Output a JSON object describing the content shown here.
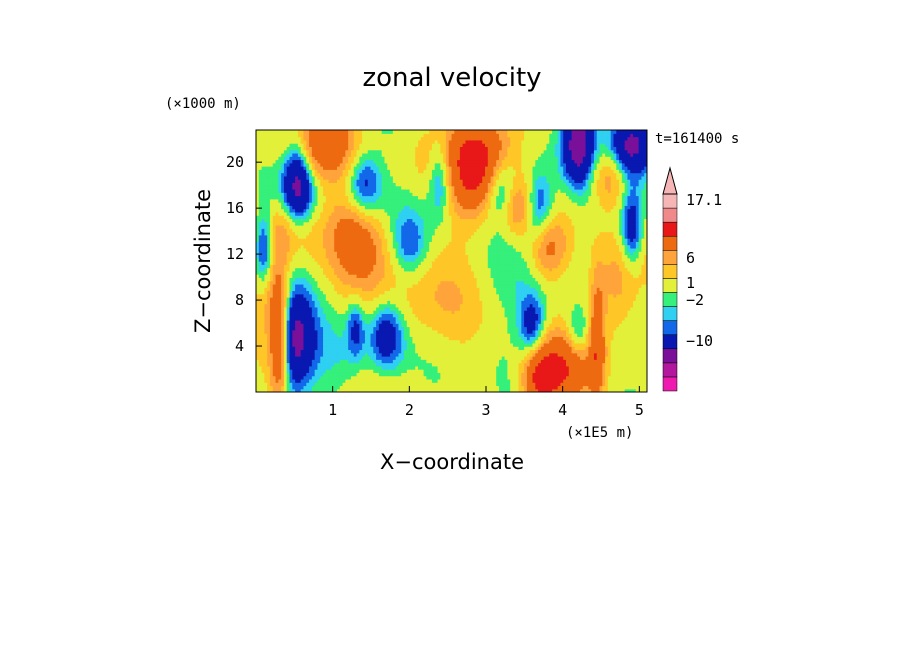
{
  "chart_data": {
    "type": "heatmap",
    "title": "zonal velocity",
    "xlabel": "X−coordinate",
    "ylabel": "Z−coordinate",
    "x_unit": "(×1E5 m)",
    "y_unit": "(×1000 m)",
    "time_label": "t=161400 s",
    "xlim": [
      0,
      5.1
    ],
    "ylim": [
      0,
      22.8
    ],
    "x_ticks": [
      1,
      2,
      3,
      4,
      5
    ],
    "y_ticks": [
      4,
      8,
      12,
      16,
      20
    ],
    "colorbar": {
      "labels": [
        {
          "text": "17.1",
          "value": 17.1
        },
        {
          "text": "6",
          "value": 6
        },
        {
          "text": "1",
          "value": 1
        },
        {
          "text": "−2",
          "value": -2
        },
        {
          "text": "−10",
          "value": -10
        }
      ],
      "colors": [
        "#ee1ab0",
        "#b3179e",
        "#7a109a",
        "#0818b0",
        "#1268e8",
        "#2fd0f2",
        "#35f07a",
        "#e2f03a",
        "#ffc628",
        "#ffa43a",
        "#ee6a10",
        "#e81818",
        "#f08a8a",
        "#f6b6b6"
      ]
    },
    "grid": false
  }
}
